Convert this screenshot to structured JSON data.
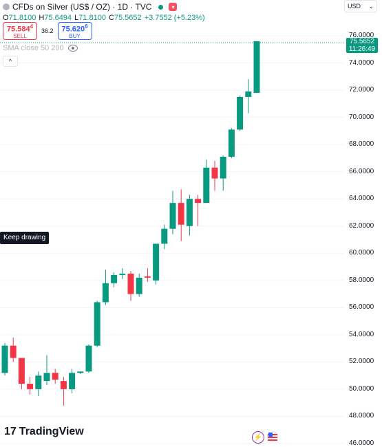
{
  "header": {
    "title": "CFDs on Silver (US$ / OZ) · 1D · TVC",
    "ohlc": [
      {
        "label": "O",
        "value": "71.8100"
      },
      {
        "label": "H",
        "value": "75.6494"
      },
      {
        "label": "L",
        "value": "71.8100"
      },
      {
        "label": "C",
        "value": "75.5652"
      }
    ],
    "change": "+3.7552 (+5.23%)",
    "currency": "USD"
  },
  "trade": {
    "sell_price": "75.584",
    "sell_sup": "4",
    "sell_label": "SELL",
    "spread": "36.2",
    "buy_price": "75.620",
    "buy_sup": "6",
    "buy_label": "BUY"
  },
  "indicator": {
    "label": "SMA close 50 200"
  },
  "collapse_symbol": "^",
  "tooltip": "Keep drawing",
  "last_price": {
    "value": "75.5652",
    "countdown": "11:26:49"
  },
  "axis_labels": [
    "76.0000",
    "74.0000",
    "72.0000",
    "70.0000",
    "68.0000",
    "66.0000",
    "64.0000",
    "62.0000",
    "60.0000",
    "58.0000",
    "56.0000",
    "54.0000",
    "52.0000",
    "50.0000",
    "48.0000",
    "46.0000"
  ],
  "brand": {
    "name": "TradingView",
    "logo_text": "17"
  },
  "colors": {
    "up": "#089981",
    "down": "#f23645",
    "grid": "#f0f3fa",
    "text": "#131722"
  },
  "chart_data": {
    "type": "candlestick",
    "ylim": [
      46,
      76
    ],
    "candles": [
      {
        "o": 51.2,
        "h": 53.4,
        "l": 51.0,
        "c": 53.2
      },
      {
        "o": 53.2,
        "h": 53.8,
        "l": 52.0,
        "c": 52.3
      },
      {
        "o": 52.3,
        "h": 52.3,
        "l": 50.0,
        "c": 50.4
      },
      {
        "o": 50.4,
        "h": 50.9,
        "l": 49.6,
        "c": 50.0
      },
      {
        "o": 50.0,
        "h": 51.3,
        "l": 49.5,
        "c": 51.0
      },
      {
        "o": 50.6,
        "h": 52.5,
        "l": 50.3,
        "c": 51.2
      },
      {
        "o": 51.2,
        "h": 51.5,
        "l": 50.4,
        "c": 50.7
      },
      {
        "o": 50.6,
        "h": 50.9,
        "l": 48.8,
        "c": 50.0
      },
      {
        "o": 50.0,
        "h": 51.5,
        "l": 49.7,
        "c": 51.2
      },
      {
        "o": 51.2,
        "h": 51.3,
        "l": 51.1,
        "c": 51.3
      },
      {
        "o": 51.3,
        "h": 53.3,
        "l": 51.2,
        "c": 53.2
      },
      {
        "o": 53.2,
        "h": 56.5,
        "l": 53.1,
        "c": 56.4
      },
      {
        "o": 56.4,
        "h": 58.8,
        "l": 56.2,
        "c": 57.8
      },
      {
        "o": 57.8,
        "h": 58.6,
        "l": 57.5,
        "c": 58.4
      },
      {
        "o": 58.4,
        "h": 58.9,
        "l": 58.1,
        "c": 58.5
      },
      {
        "o": 58.5,
        "h": 58.7,
        "l": 56.5,
        "c": 57.0
      },
      {
        "o": 57.0,
        "h": 58.5,
        "l": 56.8,
        "c": 58.2
      },
      {
        "o": 58.3,
        "h": 58.9,
        "l": 57.9,
        "c": 58.2
      },
      {
        "o": 58.0,
        "h": 60.7,
        "l": 57.7,
        "c": 60.7
      },
      {
        "o": 60.7,
        "h": 62.1,
        "l": 60.3,
        "c": 61.8
      },
      {
        "o": 61.8,
        "h": 64.6,
        "l": 61.4,
        "c": 63.7
      },
      {
        "o": 63.7,
        "h": 64.7,
        "l": 60.9,
        "c": 62.1
      },
      {
        "o": 62.0,
        "h": 64.3,
        "l": 61.3,
        "c": 64.0
      },
      {
        "o": 64.0,
        "h": 64.3,
        "l": 62.0,
        "c": 63.7
      },
      {
        "o": 63.7,
        "h": 66.9,
        "l": 63.7,
        "c": 66.3
      },
      {
        "o": 66.3,
        "h": 66.8,
        "l": 64.6,
        "c": 65.5
      },
      {
        "o": 65.5,
        "h": 67.2,
        "l": 64.6,
        "c": 67.1
      },
      {
        "o": 67.1,
        "h": 69.2,
        "l": 67.0,
        "c": 69.1
      },
      {
        "o": 69.1,
        "h": 71.6,
        "l": 69.0,
        "c": 71.5
      },
      {
        "o": 71.5,
        "h": 72.8,
        "l": 70.3,
        "c": 71.9
      },
      {
        "o": 71.8,
        "h": 75.6,
        "l": 71.8,
        "c": 75.6
      }
    ]
  }
}
